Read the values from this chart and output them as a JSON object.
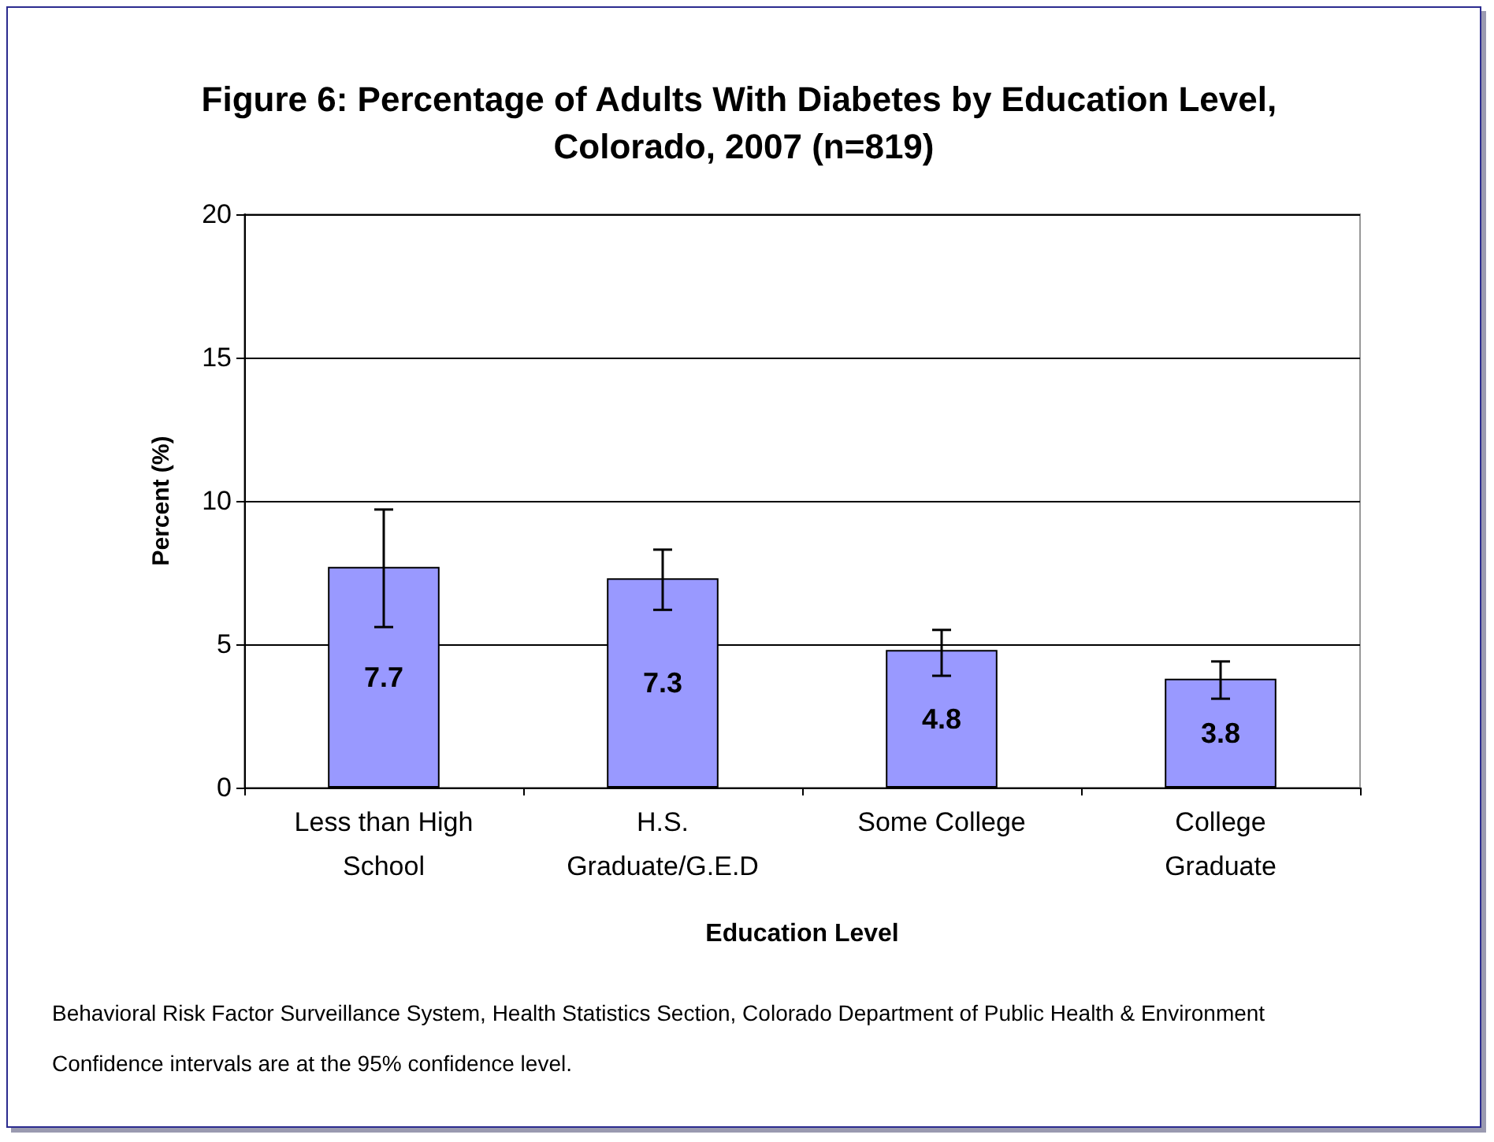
{
  "chart_data": {
    "type": "bar",
    "title": "Figure 6: Percentage of Adults With Diabetes by Education Level, Colorado, 2007 (n=819)",
    "xlabel": "Education Level",
    "ylabel": "Percent (%)",
    "categories": [
      "Less than High School",
      "H.S. Graduate/G.E.D",
      "Some College",
      "College Graduate"
    ],
    "values": [
      7.7,
      7.3,
      4.8,
      3.8
    ],
    "color": "#9999ff",
    "errors": [
      [
        5.6,
        9.7
      ],
      [
        6.2,
        8.3
      ],
      [
        3.9,
        5.5
      ],
      [
        3.1,
        4.4
      ]
    ],
    "ylim": [
      0,
      20
    ],
    "yticks": [
      0,
      5,
      10,
      15,
      20
    ],
    "grid": "y",
    "data_labels": true,
    "annotations": [
      "Behavioral Risk Factor Surveillance System, Health Statistics Section, Colorado Department of Public Health & Environment",
      "Confidence intervals are at the 95% confidence level."
    ]
  }
}
